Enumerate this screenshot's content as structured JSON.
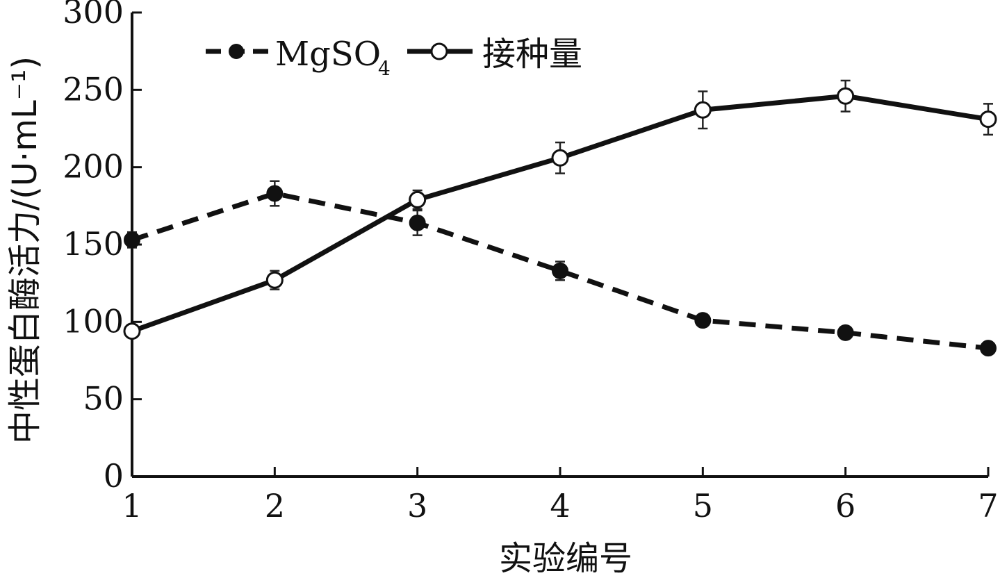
{
  "chart_data": {
    "type": "line",
    "xlabel": "实验编号",
    "ylabel": "中性蛋白酶活力/(U·mL⁻¹)",
    "x": [
      1,
      2,
      3,
      4,
      5,
      6,
      7
    ],
    "xlim": [
      1,
      7
    ],
    "ylim": [
      0,
      300
    ],
    "yticks": [
      0,
      50,
      100,
      150,
      200,
      250,
      300
    ],
    "xticks": [
      1,
      2,
      3,
      4,
      5,
      6,
      7
    ],
    "grid": false,
    "legend_position": "top-left",
    "series": [
      {
        "name": "MgSO",
        "name_subscript": "4",
        "style": "dashed",
        "marker": "filled-circle",
        "values": [
          153,
          183,
          164,
          133,
          101,
          93,
          83
        ],
        "error": [
          5,
          8,
          8,
          6,
          4,
          3,
          3
        ]
      },
      {
        "name": "接种量",
        "style": "solid",
        "marker": "open-circle",
        "values": [
          94,
          127,
          179,
          206,
          237,
          246,
          231
        ],
        "error": [
          3,
          6,
          6,
          10,
          12,
          10,
          10
        ]
      }
    ]
  }
}
